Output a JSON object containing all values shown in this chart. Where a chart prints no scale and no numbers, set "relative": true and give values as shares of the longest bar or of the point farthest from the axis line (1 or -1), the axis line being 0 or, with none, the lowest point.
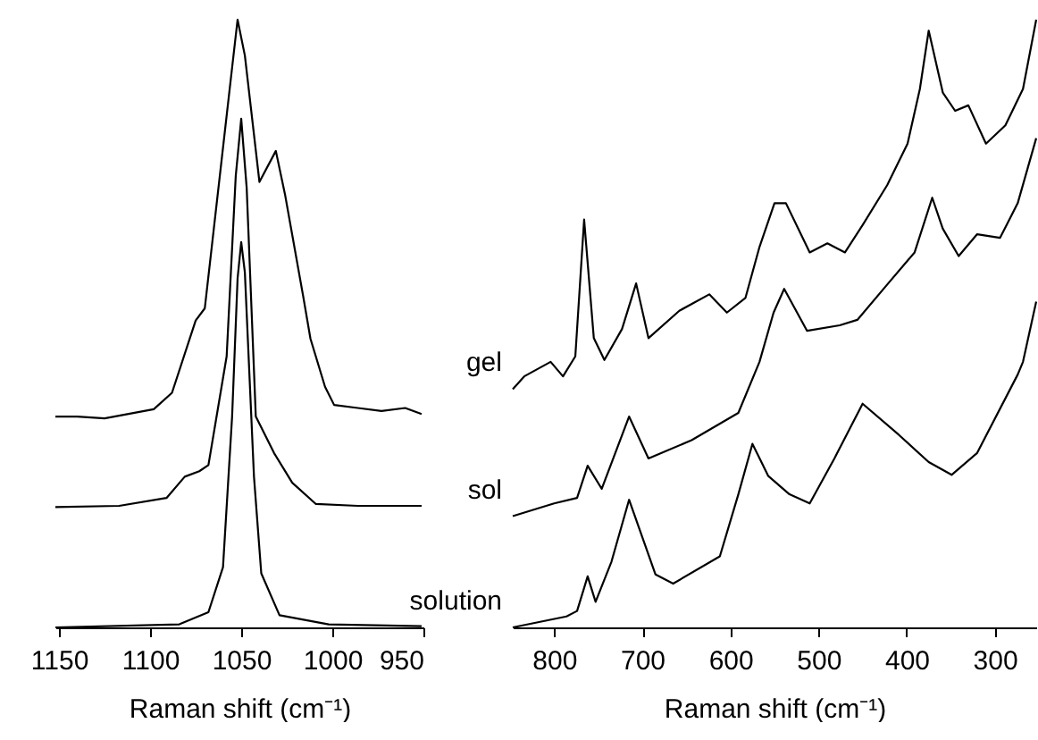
{
  "chart_data": [
    {
      "type": "line",
      "relative": true,
      "xlabel": "Raman shift (cm⁻¹)",
      "xlim": [
        1152,
        950
      ],
      "xticks": [
        1150,
        1100,
        1050,
        1000,
        950
      ],
      "series": [
        {
          "color": "#000000",
          "x": [
            1152,
            1140,
            1125,
            1098,
            1088,
            1075,
            1070,
            1058,
            1052,
            1048,
            1040,
            1031,
            1026,
            1016,
            1012,
            1004,
            999,
            986,
            973,
            960,
            951
          ],
          "values": [
            0.347,
            0.347,
            0.344,
            0.359,
            0.386,
            0.505,
            0.525,
            0.842,
            1.0,
            0.941,
            0.733,
            0.784,
            0.713,
            0.545,
            0.475,
            0.396,
            0.366,
            0.361,
            0.356,
            0.361,
            0.351
          ]
        },
        {
          "color": "#000000",
          "x": [
            1152,
            1117,
            1091,
            1081,
            1073,
            1068,
            1058,
            1053,
            1050,
            1047,
            1042,
            1032,
            1022,
            1009,
            986,
            951
          ],
          "values": [
            0.198,
            0.2,
            0.213,
            0.248,
            0.257,
            0.267,
            0.446,
            0.743,
            0.837,
            0.723,
            0.347,
            0.287,
            0.238,
            0.203,
            0.2,
            0.2
          ]
        },
        {
          "color": "#000000",
          "x": [
            1152,
            1084,
            1068,
            1060,
            1055,
            1052,
            1050,
            1048,
            1043,
            1039,
            1029,
            1002,
            951
          ],
          "values": [
            0,
            0.005,
            0.025,
            0.099,
            0.347,
            0.574,
            0.634,
            0.584,
            0.248,
            0.089,
            0.02,
            0.005,
            0.002
          ]
        }
      ]
    },
    {
      "type": "line",
      "relative": true,
      "xlabel": "Raman shift (cm⁻¹)",
      "xlim": [
        847,
        253
      ],
      "xticks": [
        800,
        700,
        600,
        500,
        400,
        300
      ],
      "series": [
        {
          "name": "gel",
          "color": "#000000",
          "x": [
            847,
            834,
            804,
            790,
            776,
            766,
            755,
            743,
            723,
            707,
            693,
            658,
            624,
            604,
            583,
            567,
            550,
            537,
            510,
            490,
            470,
            450,
            422,
            399,
            385,
            375,
            359,
            345,
            330,
            310,
            288,
            268,
            253
          ],
          "values": [
            0.392,
            0.413,
            0.437,
            0.413,
            0.446,
            0.671,
            0.476,
            0.44,
            0.491,
            0.566,
            0.476,
            0.521,
            0.548,
            0.518,
            0.542,
            0.626,
            0.698,
            0.698,
            0.617,
            0.632,
            0.617,
            0.662,
            0.728,
            0.796,
            0.886,
            0.982,
            0.88,
            0.85,
            0.859,
            0.796,
            0.826,
            0.886,
            1.0
          ]
        },
        {
          "name": "sol",
          "color": "#000000",
          "x": [
            847,
            800,
            774,
            762,
            746,
            715,
            693,
            644,
            591,
            567,
            551,
            539,
            513,
            476,
            456,
            421,
            391,
            371,
            359,
            341,
            320,
            294,
            274,
            253
          ],
          "values": [
            0.183,
            0.204,
            0.213,
            0.266,
            0.228,
            0.347,
            0.278,
            0.308,
            0.353,
            0.437,
            0.518,
            0.557,
            0.488,
            0.497,
            0.506,
            0.566,
            0.617,
            0.707,
            0.656,
            0.611,
            0.647,
            0.641,
            0.698,
            0.805
          ]
        },
        {
          "name": "solution",
          "color": "#000000",
          "x": [
            847,
            786,
            774,
            762,
            753,
            735,
            715,
            685,
            665,
            612,
            591,
            575,
            557,
            533,
            510,
            482,
            450,
            409,
            375,
            349,
            320,
            274,
            268,
            253
          ],
          "values": [
            0,
            0.018,
            0.027,
            0.084,
            0.042,
            0.108,
            0.21,
            0.087,
            0.072,
            0.117,
            0.219,
            0.302,
            0.249,
            0.219,
            0.204,
            0.278,
            0.368,
            0.317,
            0.272,
            0.251,
            0.287,
            0.416,
            0.437,
            0.536
          ]
        }
      ]
    }
  ]
}
